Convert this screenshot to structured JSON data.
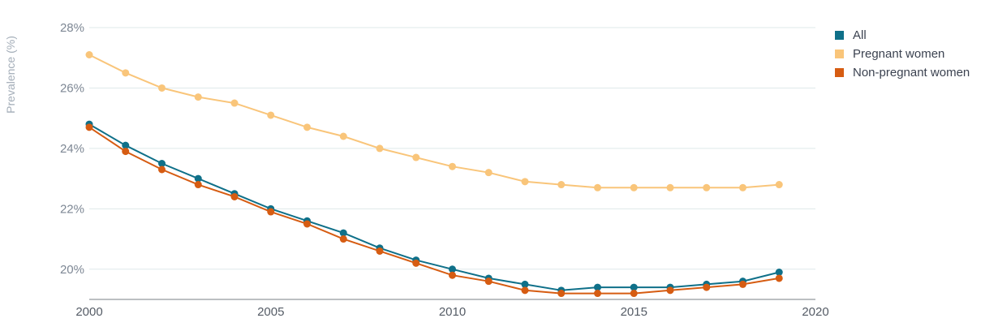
{
  "chart_data": {
    "type": "line",
    "title": "",
    "xlabel": "",
    "ylabel": "Prevalence (%)",
    "xlim": [
      2000,
      2020
    ],
    "ylim": [
      19,
      28
    ],
    "x_ticks": [
      2000,
      2005,
      2010,
      2015,
      2020
    ],
    "x_tick_labels": [
      "2000",
      "2005",
      "2010",
      "2015",
      "2020"
    ],
    "y_ticks": [
      20,
      22,
      24,
      26,
      28
    ],
    "y_tick_labels": [
      "20%",
      "22%",
      "24%",
      "26%",
      "28%"
    ],
    "grid": true,
    "legend_position": "top-right",
    "x": [
      2000,
      2001,
      2002,
      2003,
      2004,
      2005,
      2006,
      2007,
      2008,
      2009,
      2010,
      2011,
      2012,
      2013,
      2014,
      2015,
      2016,
      2017,
      2018,
      2019
    ],
    "series": [
      {
        "name": "All",
        "color": "#0f7089",
        "values": [
          24.8,
          24.1,
          23.5,
          23.0,
          22.5,
          22.0,
          21.6,
          21.2,
          20.7,
          20.3,
          20.0,
          19.7,
          19.5,
          19.3,
          19.4,
          19.4,
          19.4,
          19.5,
          19.6,
          19.9
        ]
      },
      {
        "name": "Pregnant women",
        "color": "#f9c57a",
        "values": [
          27.1,
          26.5,
          26.0,
          25.7,
          25.5,
          25.1,
          24.7,
          24.4,
          24.0,
          23.7,
          23.4,
          23.2,
          22.9,
          22.8,
          22.7,
          22.7,
          22.7,
          22.7,
          22.7,
          22.8
        ]
      },
      {
        "name": "Non-pregnant women",
        "color": "#d65c12",
        "values": [
          24.7,
          23.9,
          23.3,
          22.8,
          22.4,
          21.9,
          21.5,
          21.0,
          20.6,
          20.2,
          19.8,
          19.6,
          19.3,
          19.2,
          19.2,
          19.2,
          19.3,
          19.4,
          19.5,
          19.7
        ]
      }
    ]
  }
}
